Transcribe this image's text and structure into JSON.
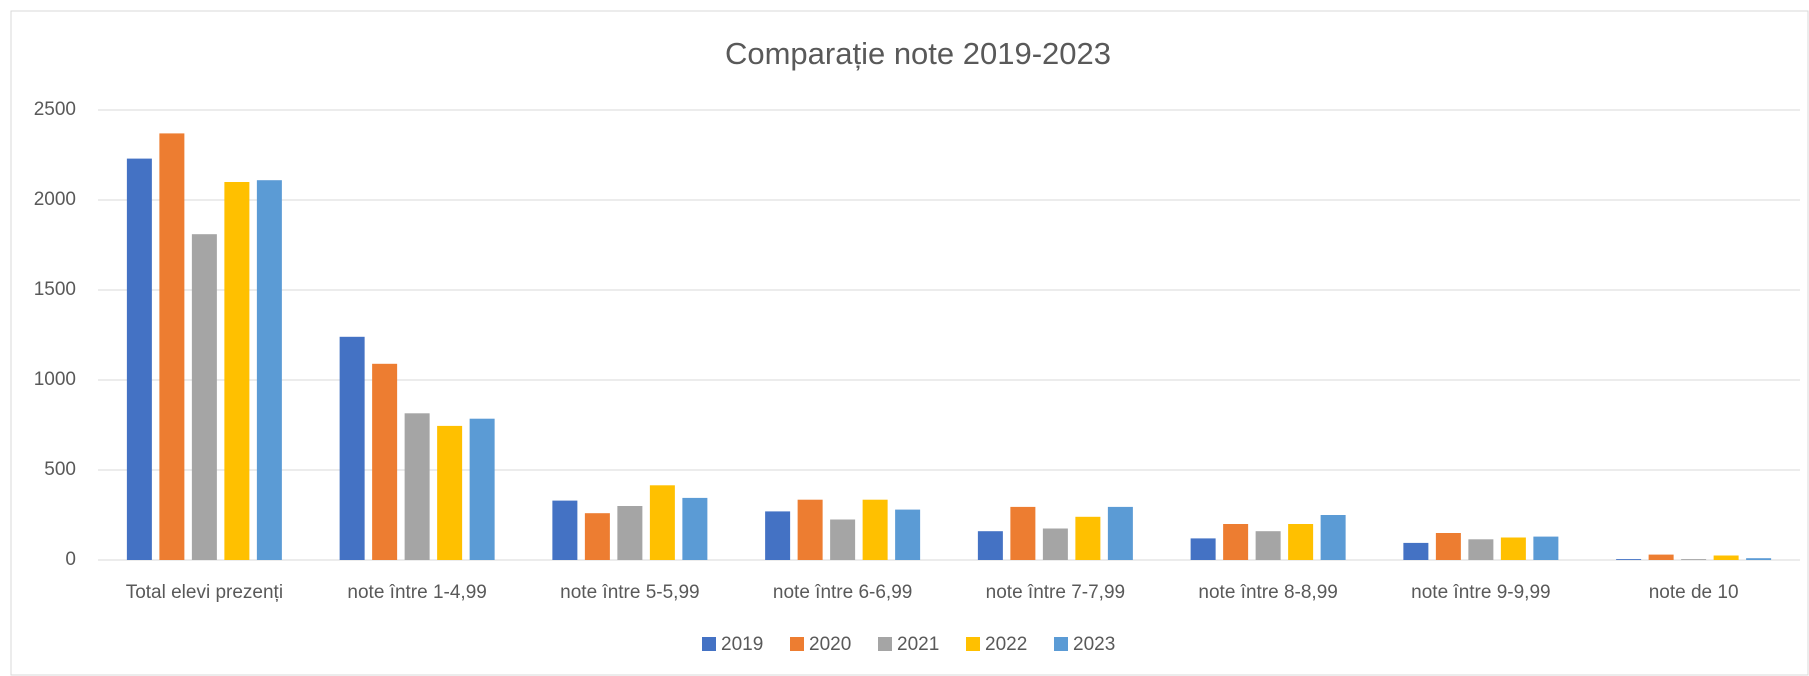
{
  "chart_data": {
    "type": "bar",
    "title": "Comparație note 2019-2023",
    "categories": [
      "Total elevi prezenți",
      "note între 1-4,99",
      "note între 5-5,99",
      "note între 6-6,99",
      "note între 7-7,99",
      "note între 8-8,99",
      "note între 9-9,99",
      "note de 10"
    ],
    "series": [
      {
        "name": "2019",
        "color": "#4472c4",
        "values": [
          2230,
          1240,
          330,
          270,
          160,
          120,
          95,
          5
        ]
      },
      {
        "name": "2020",
        "color": "#ed7d31",
        "values": [
          2370,
          1090,
          260,
          335,
          295,
          200,
          150,
          30
        ]
      },
      {
        "name": "2021",
        "color": "#a5a5a5",
        "values": [
          1810,
          815,
          300,
          225,
          175,
          160,
          115,
          5
        ]
      },
      {
        "name": "2022",
        "color": "#ffc000",
        "values": [
          2100,
          745,
          415,
          335,
          240,
          200,
          125,
          25
        ]
      },
      {
        "name": "2023",
        "color": "#5b9bd5",
        "values": [
          2110,
          785,
          345,
          280,
          295,
          250,
          130,
          10
        ]
      }
    ],
    "ylim": [
      0,
      2500
    ],
    "yticks": [
      0,
      500,
      1000,
      1500,
      2000,
      2500
    ],
    "grid": true,
    "legend": "bottom"
  }
}
